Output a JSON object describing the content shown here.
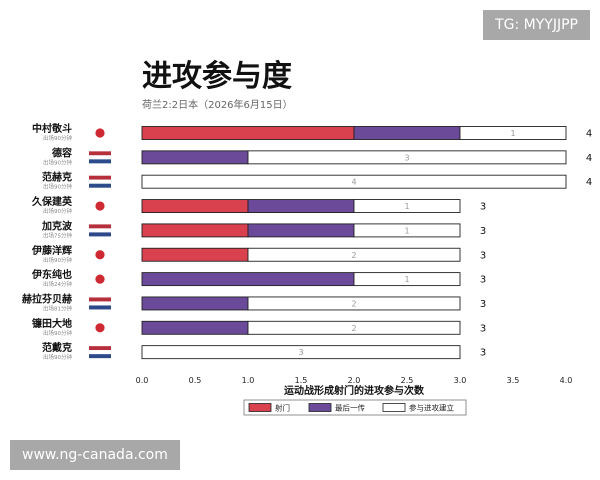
{
  "watermark": {
    "tg": "TG: MYYJJPP",
    "site": "www.ng-canada.com"
  },
  "colors": {
    "shot": "#d9414f",
    "assist": "#6b4a99",
    "build": "#ffffff",
    "jp_red": "#cf2a34",
    "nl_red": "#b5303b",
    "nl_blue": "#2c4a8a"
  },
  "chart_data": {
    "type": "bar",
    "orientation": "horizontal",
    "stacked": true,
    "title": "进攻参与度",
    "subtitle": "荷兰2:2日本（2026年6月15日）",
    "xlabel": "运动战形成射门的进攻参与次数",
    "xlim": [
      0,
      4.0
    ],
    "xticks": [
      "0.0",
      "0.5",
      "1.0",
      "1.5",
      "2.0",
      "2.5",
      "3.0",
      "3.5",
      "4.0"
    ],
    "legend_position": "bottom",
    "players": [
      {
        "name": "中村敬斗",
        "minutes": "出场90分钟",
        "flag": "jp",
        "total": 4
      },
      {
        "name": "德容",
        "minutes": "出场90分钟",
        "flag": "nl",
        "total": 4
      },
      {
        "name": "范赫克",
        "minutes": "出场90分钟",
        "flag": "nl",
        "total": 4
      },
      {
        "name": "久保建英",
        "minutes": "出场90分钟",
        "flag": "jp",
        "total": 3
      },
      {
        "name": "加克波",
        "minutes": "出场75分钟",
        "flag": "nl",
        "total": 3
      },
      {
        "name": "伊藤洋辉",
        "minutes": "出场90分钟",
        "flag": "jp",
        "total": 3
      },
      {
        "name": "伊东纯也",
        "minutes": "出场24分钟",
        "flag": "jp",
        "total": 3
      },
      {
        "name": "赫拉芬贝赫",
        "minutes": "出场81分钟",
        "flag": "nl",
        "total": 3
      },
      {
        "name": "镰田大地",
        "minutes": "出场90分钟",
        "flag": "jp",
        "total": 3
      },
      {
        "name": "范戴克",
        "minutes": "出场90分钟",
        "flag": "nl",
        "total": 3
      }
    ],
    "series": [
      {
        "name": "射门",
        "key": "shot",
        "values": [
          2,
          0,
          0,
          1,
          1,
          1,
          0,
          0,
          0,
          0
        ]
      },
      {
        "name": "最后一传",
        "key": "assist",
        "values": [
          1,
          1,
          0,
          1,
          1,
          0,
          2,
          1,
          1,
          0
        ]
      },
      {
        "name": "参与进攻建立",
        "key": "build",
        "values": [
          1,
          3,
          4,
          1,
          1,
          2,
          1,
          2,
          2,
          3
        ]
      }
    ],
    "segment_labels": [
      [
        null,
        null,
        "1"
      ],
      [
        null,
        null,
        "3"
      ],
      [
        null,
        null,
        "4"
      ],
      [
        null,
        null,
        "1"
      ],
      [
        null,
        null,
        "1"
      ],
      [
        null,
        null,
        "2"
      ],
      [
        null,
        null,
        "1"
      ],
      [
        null,
        null,
        "2"
      ],
      [
        null,
        null,
        "2"
      ],
      [
        null,
        null,
        "3"
      ]
    ]
  }
}
